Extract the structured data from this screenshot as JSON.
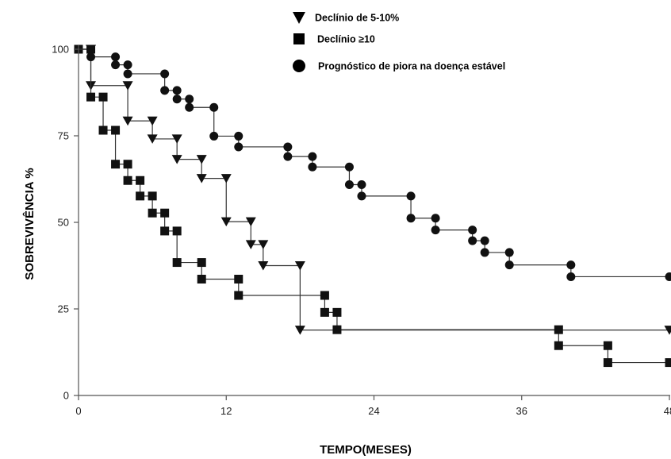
{
  "chart_data": {
    "type": "line",
    "subtype": "kaplan-meier-step",
    "xlabel": "TEMPO(MESES)",
    "ylabel": "SOBREVIVÊNCIA %",
    "xlim": [
      0,
      48
    ],
    "ylim": [
      0,
      100
    ],
    "x_ticks": [
      0,
      12,
      24,
      36,
      48
    ],
    "x_tick_labels": [
      "0",
      "12",
      "24",
      "36",
      "48"
    ],
    "y_ticks": [
      0,
      25,
      50,
      75,
      100
    ],
    "y_tick_labels": [
      "0",
      "25",
      "50",
      "75",
      "100"
    ],
    "grid": false,
    "legend_position": "top",
    "series": [
      {
        "name": "Declínio de 5-10%",
        "marker": "triangle-down",
        "color": "#111111",
        "steps": [
          [
            0,
            100
          ],
          [
            1,
            89.5
          ],
          [
            4,
            79.3
          ],
          [
            6,
            74.1
          ],
          [
            8,
            68.2
          ],
          [
            10,
            62.7
          ],
          [
            12,
            50.2
          ],
          [
            14,
            43.6
          ],
          [
            15,
            37.5
          ],
          [
            18,
            18.9
          ],
          [
            48,
            18.9
          ]
        ],
        "markers": [
          [
            1,
            100
          ],
          [
            1,
            89.5
          ],
          [
            4,
            89.5
          ],
          [
            4,
            79.3
          ],
          [
            6,
            79.3
          ],
          [
            6,
            74.1
          ],
          [
            8,
            74.1
          ],
          [
            8,
            68.2
          ],
          [
            10,
            68.2
          ],
          [
            10,
            62.7
          ],
          [
            12,
            62.7
          ],
          [
            12,
            50.2
          ],
          [
            14,
            50.2
          ],
          [
            14,
            43.6
          ],
          [
            15,
            43.6
          ],
          [
            15,
            37.5
          ],
          [
            18,
            37.5
          ],
          [
            18,
            18.9
          ],
          [
            48,
            18.9
          ]
        ]
      },
      {
        "name": "Declínio  ≥10",
        "marker": "square",
        "color": "#111111",
        "steps": [
          [
            0,
            100
          ],
          [
            1,
            86.2
          ],
          [
            2,
            76.6
          ],
          [
            3,
            66.8
          ],
          [
            4,
            62.1
          ],
          [
            5,
            57.6
          ],
          [
            6,
            52.7
          ],
          [
            7,
            47.5
          ],
          [
            8,
            38.4
          ],
          [
            10,
            33.6
          ],
          [
            13,
            28.9
          ],
          [
            20,
            24.0
          ],
          [
            21,
            19.0
          ],
          [
            39,
            14.4
          ],
          [
            43,
            9.5
          ],
          [
            48,
            9.5
          ]
        ],
        "markers": [
          [
            0,
            100
          ],
          [
            1,
            100
          ],
          [
            1,
            86.2
          ],
          [
            2,
            86.2
          ],
          [
            2,
            76.6
          ],
          [
            3,
            76.6
          ],
          [
            3,
            66.8
          ],
          [
            4,
            66.8
          ],
          [
            4,
            62.1
          ],
          [
            5,
            62.1
          ],
          [
            5,
            57.6
          ],
          [
            6,
            57.6
          ],
          [
            6,
            52.7
          ],
          [
            7,
            52.7
          ],
          [
            7,
            47.5
          ],
          [
            8,
            47.5
          ],
          [
            8,
            38.4
          ],
          [
            10,
            38.4
          ],
          [
            10,
            33.6
          ],
          [
            13,
            33.6
          ],
          [
            13,
            28.9
          ],
          [
            20,
            28.9
          ],
          [
            20,
            24.0
          ],
          [
            21,
            24.0
          ],
          [
            21,
            19.0
          ],
          [
            39,
            19.0
          ],
          [
            39,
            14.4
          ],
          [
            43,
            14.4
          ],
          [
            43,
            9.5
          ],
          [
            48,
            9.5
          ]
        ]
      },
      {
        "name": "Prognóstico de piora na doença estável",
        "marker": "circle",
        "color": "#111111",
        "steps": [
          [
            0,
            100
          ],
          [
            1,
            97.8
          ],
          [
            3,
            95.5
          ],
          [
            4,
            92.9
          ],
          [
            7,
            88.1
          ],
          [
            8,
            85.6
          ],
          [
            9,
            83.2
          ],
          [
            11,
            74.9
          ],
          [
            13,
            71.8
          ],
          [
            17,
            69.0
          ],
          [
            19,
            66.0
          ],
          [
            22,
            60.9
          ],
          [
            23,
            57.6
          ],
          [
            27,
            51.2
          ],
          [
            29,
            47.8
          ],
          [
            32,
            44.7
          ],
          [
            33,
            41.3
          ],
          [
            35,
            37.7
          ],
          [
            40,
            34.3
          ],
          [
            48,
            34.3
          ]
        ],
        "markers": [
          [
            1,
            100
          ],
          [
            1,
            97.8
          ],
          [
            3,
            97.8
          ],
          [
            3,
            95.5
          ],
          [
            4,
            95.5
          ],
          [
            4,
            92.9
          ],
          [
            7,
            92.9
          ],
          [
            7,
            88.1
          ],
          [
            8,
            88.1
          ],
          [
            8,
            85.6
          ],
          [
            9,
            85.6
          ],
          [
            9,
            83.2
          ],
          [
            11,
            83.2
          ],
          [
            11,
            74.9
          ],
          [
            13,
            74.9
          ],
          [
            13,
            71.8
          ],
          [
            17,
            71.8
          ],
          [
            17,
            69.0
          ],
          [
            19,
            69.0
          ],
          [
            19,
            66.0
          ],
          [
            22,
            66.0
          ],
          [
            22,
            60.9
          ],
          [
            23,
            60.9
          ],
          [
            23,
            57.6
          ],
          [
            27,
            57.6
          ],
          [
            27,
            51.2
          ],
          [
            29,
            51.2
          ],
          [
            29,
            47.8
          ],
          [
            32,
            47.8
          ],
          [
            32,
            44.7
          ],
          [
            33,
            44.7
          ],
          [
            33,
            41.3
          ],
          [
            35,
            41.3
          ],
          [
            35,
            37.7
          ],
          [
            40,
            37.7
          ],
          [
            40,
            34.3
          ],
          [
            48,
            34.3
          ]
        ]
      }
    ]
  }
}
